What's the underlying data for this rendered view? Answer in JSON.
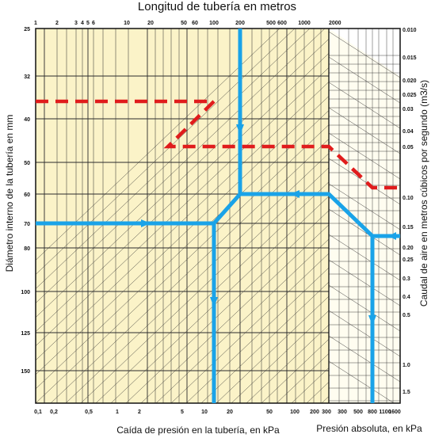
{
  "title": "Longitud de tubería en metros",
  "left_label": "Diámetro interno de la tubería en mm",
  "right_label": "Caudal de aire en metros cúbicos por segundo (m3/s)",
  "bottom_label": "Caída de presión en la tubería, en kPa",
  "bottom_right_label": "Presión absoluta, en kPa",
  "top_ticks": [
    "1",
    "2",
    "3",
    "4",
    "5",
    "6",
    "10",
    "20",
    "50",
    "60",
    "100",
    "200",
    "500",
    "600",
    "1000",
    "2000"
  ],
  "left_ticks": [
    "25",
    "32",
    "40",
    "50",
    "60",
    "70",
    "80",
    "100",
    "125",
    "150"
  ],
  "right_ticks": [
    "0.010",
    "0.015",
    "0.020",
    "0.025",
    "0.03",
    "0.04",
    "0.05",
    "0.10",
    "0.15",
    "0.20",
    "0.25",
    "0.3",
    "0.4",
    "0.5",
    "1.0",
    "1.5"
  ],
  "bottom_ticks": [
    "0,1",
    "0,2",
    "0,5",
    "1",
    "2",
    "5",
    "10",
    "20",
    "50",
    "100",
    "200",
    "300"
  ],
  "bottom_right_ticks": [
    "300",
    "500",
    "800",
    "1100",
    "1600"
  ],
  "colors": {
    "chart_bg": "#fbf3c8",
    "grid": "#2b2b2b",
    "blue_path": "#1aa3e8",
    "red_path": "#e01c1c"
  }
}
